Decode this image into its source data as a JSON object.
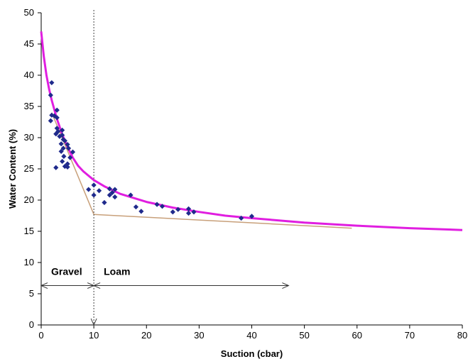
{
  "chart_data": {
    "type": "scatter",
    "xlabel": "Suction (cbar)",
    "ylabel": "Water Content (%)",
    "xlim": [
      0,
      80
    ],
    "ylim": [
      0,
      50
    ],
    "xticks": [
      0,
      10,
      20,
      30,
      40,
      50,
      60,
      70,
      80
    ],
    "yticks": [
      0,
      5,
      10,
      15,
      20,
      25,
      30,
      35,
      40,
      45,
      50
    ],
    "grid": false,
    "legend": "none",
    "points": {
      "color": "#1f2a8c",
      "marker": "diamond",
      "data": [
        [
          2,
          38.8
        ],
        [
          1.8,
          36.8
        ],
        [
          2,
          33.6
        ],
        [
          1.8,
          32.7
        ],
        [
          2.5,
          33.5
        ],
        [
          3,
          34.4
        ],
        [
          3,
          33.2
        ],
        [
          3,
          31.5
        ],
        [
          3.2,
          31
        ],
        [
          2.8,
          30.6
        ],
        [
          3.5,
          30.2
        ],
        [
          4,
          31.2
        ],
        [
          4,
          30.4
        ],
        [
          4.2,
          29.7
        ],
        [
          3.8,
          29
        ],
        [
          4.5,
          29.5
        ],
        [
          5,
          28.9
        ],
        [
          4.2,
          28.3
        ],
        [
          3.8,
          27.8
        ],
        [
          5.2,
          28.3
        ],
        [
          6,
          27.7
        ],
        [
          4.3,
          27
        ],
        [
          5.5,
          26.8
        ],
        [
          4,
          26.2
        ],
        [
          5,
          25.8
        ],
        [
          5,
          25.3
        ],
        [
          2.8,
          25.2
        ],
        [
          4.5,
          25.4
        ],
        [
          9,
          21.7
        ],
        [
          10,
          22.4
        ],
        [
          10,
          20.8
        ],
        [
          11,
          21.5
        ],
        [
          12,
          19.6
        ],
        [
          13,
          21.8
        ],
        [
          13,
          20.8
        ],
        [
          13.5,
          21.2
        ],
        [
          14,
          21.7
        ],
        [
          14,
          20.5
        ],
        [
          17,
          20.8
        ],
        [
          18,
          18.9
        ],
        [
          19,
          18.2
        ],
        [
          22,
          19.3
        ],
        [
          23,
          19
        ],
        [
          25,
          18.1
        ],
        [
          26,
          18.5
        ],
        [
          28,
          18.6
        ],
        [
          28,
          17.9
        ],
        [
          29,
          18.1
        ],
        [
          38,
          17.1
        ],
        [
          40,
          17.4
        ]
      ]
    },
    "fit_curve": {
      "color": "#e01ee0",
      "data": [
        [
          0,
          47
        ],
        [
          0.5,
          43
        ],
        [
          1,
          40
        ],
        [
          1.5,
          37.8
        ],
        [
          2,
          36
        ],
        [
          3,
          33
        ],
        [
          4,
          30.5
        ],
        [
          5,
          28.5
        ],
        [
          6,
          26.8
        ],
        [
          7,
          25.5
        ],
        [
          8,
          24.6
        ],
        [
          10,
          23.2
        ],
        [
          12,
          22.2
        ],
        [
          15,
          21
        ],
        [
          20,
          19.7
        ],
        [
          25,
          18.8
        ],
        [
          30,
          18.1
        ],
        [
          35,
          17.5
        ],
        [
          40,
          17.1
        ],
        [
          50,
          16.4
        ],
        [
          60,
          15.9
        ],
        [
          70,
          15.5
        ],
        [
          80,
          15.2
        ]
      ]
    },
    "tangent_lines": {
      "color": "#c8a07a",
      "segments": [
        [
          [
            2,
            34
          ],
          [
            10,
            17.7
          ]
        ],
        [
          [
            10,
            17.7
          ],
          [
            59,
            15.5
          ]
        ]
      ]
    },
    "divider": {
      "x": 10,
      "style": "dotted"
    },
    "regions": [
      {
        "label": "Gravel",
        "x_from": 0,
        "x_to": 10,
        "y": 6.3
      },
      {
        "label": "Loam",
        "x_from": 10,
        "x_to": 47,
        "y": 6.3
      }
    ]
  }
}
